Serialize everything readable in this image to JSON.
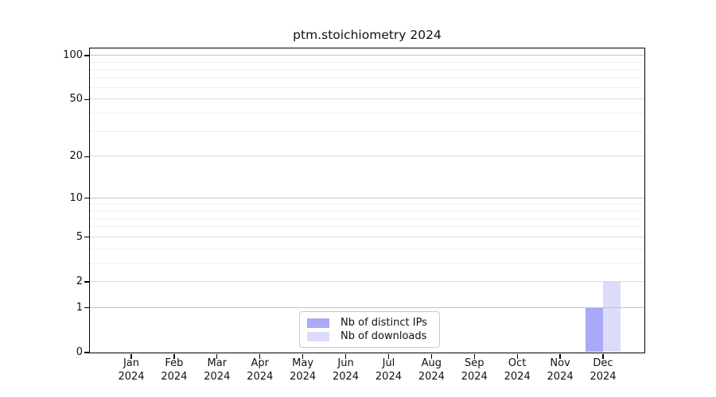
{
  "title": "ptm.stoichiometry 2024",
  "chart_data": {
    "type": "bar",
    "title": "ptm.stoichiometry 2024",
    "categories": [
      "Jan",
      "Feb",
      "Mar",
      "Apr",
      "May",
      "Jun",
      "Jul",
      "Aug",
      "Sep",
      "Oct",
      "Nov",
      "Dec"
    ],
    "x_year_label": "2024",
    "series": [
      {
        "name": "Nb of distinct IPs",
        "color": "#a9a9f7",
        "values": [
          0,
          0,
          0,
          0,
          0,
          0,
          0,
          0,
          0,
          0,
          0,
          1
        ]
      },
      {
        "name": "Nb of downloads",
        "color": "#dcdcfa",
        "values": [
          0,
          0,
          0,
          0,
          0,
          0,
          0,
          0,
          0,
          0,
          0,
          2
        ]
      }
    ],
    "xlabel": "",
    "ylabel": "",
    "y_scale": "log1p",
    "ylim": [
      0,
      112
    ],
    "y_tick_labels": [
      0,
      1,
      2,
      5,
      10,
      20,
      50,
      100
    ],
    "y_minor_gridlines": [
      3,
      4,
      6,
      7,
      8,
      9,
      30,
      40,
      60,
      70,
      80,
      90
    ],
    "y_power_gridlines": [
      1,
      10,
      100
    ],
    "grid": true,
    "legend_position": "bottom-center"
  },
  "legend": {
    "items": [
      {
        "label": "Nb of distinct IPs",
        "color": "#a9a9f7"
      },
      {
        "label": "Nb of downloads",
        "color": "#dcdcfa"
      }
    ]
  },
  "colors": {
    "background": "#ffffff",
    "frame": "#000000",
    "grid_minor": "#efefef",
    "grid_mid": "#dbdbdb",
    "grid_major": "#c3c3c3",
    "text": "#111111",
    "legend_border": "#c9c9c9"
  }
}
